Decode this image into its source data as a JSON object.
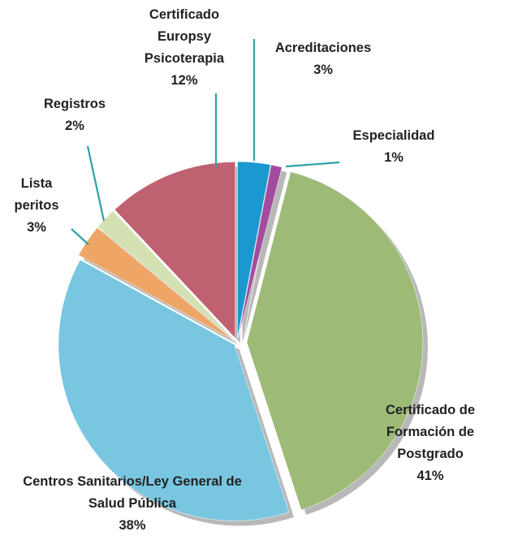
{
  "chart_data": {
    "type": "pie",
    "categories": [
      "Acreditaciones",
      "Especialidad",
      "Certificado de Formación de Postgrado",
      "Centros Sanitarios/Ley General de Salud Pública",
      "Lista peritos",
      "Registros",
      "Certificado Europsy Psicoterapia"
    ],
    "values": [
      3,
      1,
      41,
      38,
      3,
      2,
      12
    ],
    "value_labels": [
      "3%",
      "1%",
      "41%",
      "38%",
      "3%",
      "2%",
      "12%"
    ],
    "colors": [
      "#1b98cf",
      "#a54b9f",
      "#9dbb77",
      "#79c6e1",
      "#eea566",
      "#d4e1b2",
      "#bf6170"
    ]
  }
}
